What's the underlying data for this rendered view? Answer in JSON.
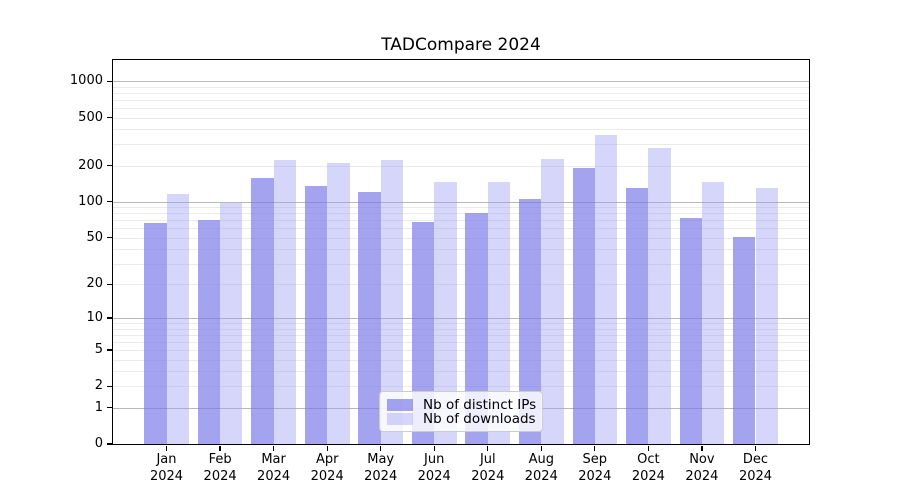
{
  "title": "TADCompare 2024",
  "colors": {
    "distinct_ips_bar": "#a6a6f0",
    "distinct_ips_bar_rgba": "rgba(120,120,232,0.68)",
    "downloads_bar": "#d8d8f9",
    "downloads_bar_rgba": "rgba(158,158,242,0.42)",
    "grid_major": "#b8b8b8",
    "grid_minor": "#ebebeb",
    "axis_line": "#000000",
    "legend_border": "#cccccc",
    "legend_background": "rgba(255,255,255,0.8)"
  },
  "axes": {
    "y_tick_labels": [
      "1000",
      "500",
      "200",
      "100",
      "50",
      "20",
      "10",
      "5",
      "2",
      "1",
      "0"
    ],
    "y_tick_values": [
      1000,
      500,
      200,
      100,
      50,
      20,
      10,
      5,
      2,
      1,
      0
    ],
    "x_tick_labels": [
      "Jan 2024",
      "Feb 2024",
      "Mar 2024",
      "Apr 2024",
      "May 2024",
      "Jun 2024",
      "Jul 2024",
      "Aug 2024",
      "Sep 2024",
      "Oct 2024",
      "Nov 2024",
      "Dec 2024"
    ]
  },
  "chart_data": {
    "type": "bar",
    "title": "TADCompare 2024",
    "categories": [
      "Jan 2024",
      "Feb 2024",
      "Mar 2024",
      "Apr 2024",
      "May 2024",
      "Jun 2024",
      "Jul 2024",
      "Aug 2024",
      "Sep 2024",
      "Oct 2024",
      "Nov 2024",
      "Dec 2024"
    ],
    "series": [
      {
        "name": "Nb of distinct IPs",
        "values": [
          67,
          70,
          158,
          136,
          120,
          68,
          80,
          105,
          192,
          131,
          73,
          51
        ]
      },
      {
        "name": "Nb of downloads",
        "values": [
          115,
          97,
          224,
          211,
          221,
          147,
          147,
          228,
          358,
          278,
          145,
          131
        ]
      }
    ],
    "xlabel": "",
    "ylabel": "",
    "yscale": "log1p",
    "ylim": [
      0,
      1500
    ],
    "yticks": [
      0,
      1,
      2,
      5,
      10,
      20,
      50,
      100,
      200,
      500,
      1000
    ],
    "grid": "horizontal major+minor",
    "legend_position": "inside lower-center"
  }
}
